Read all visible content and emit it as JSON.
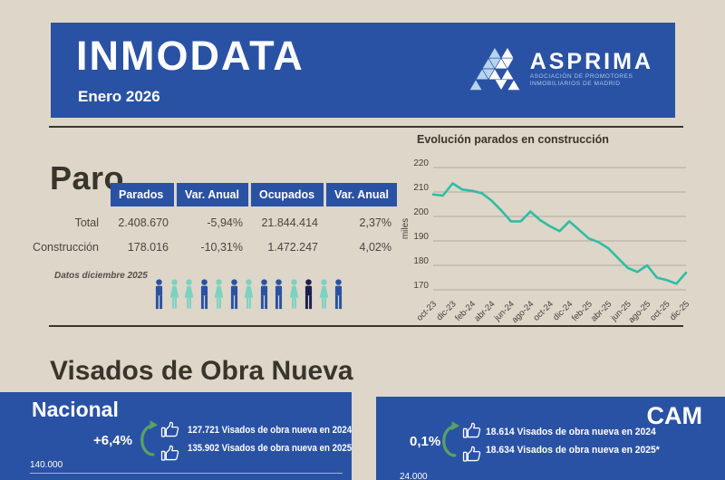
{
  "header": {
    "title": "INMODATA",
    "subtitle": "Enero 2026",
    "logo": {
      "name": "ASPRIMA",
      "tagline_line1": "ASOCIACIÓN DE PROMOTORES",
      "tagline_line2": "INMOBILIARIOS DE MADRID"
    }
  },
  "paro": {
    "title": "Paro",
    "table": {
      "columns": [
        "Parados",
        "Var. Anual",
        "Ocupados",
        "Var. Anual"
      ],
      "rows": [
        {
          "label": "Total",
          "values": [
            "2.408.670",
            "-5,94%",
            "21.844.414",
            "2,37%"
          ]
        },
        {
          "label": "Construcción",
          "values": [
            "178.016",
            "-10,31%",
            "1.472.247",
            "4,02%"
          ]
        }
      ]
    },
    "note": "Datos diciembre 2025",
    "pictogram": {
      "figures": [
        {
          "type": "man",
          "color": "#2a52a4"
        },
        {
          "type": "woman",
          "color": "#7bd2c0"
        },
        {
          "type": "woman",
          "color": "#7bd2c0"
        },
        {
          "type": "man",
          "color": "#2a52a4"
        },
        {
          "type": "woman",
          "color": "#7bd2c0"
        },
        {
          "type": "man",
          "color": "#2a52a4"
        },
        {
          "type": "woman",
          "color": "#7bd2c0"
        },
        {
          "type": "man",
          "color": "#2a52a4"
        },
        {
          "type": "man",
          "color": "#2a52a4"
        },
        {
          "type": "woman",
          "color": "#7bd2c0"
        },
        {
          "type": "man",
          "color": "#1c1e4e"
        },
        {
          "type": "woman",
          "color": "#7bd2c0"
        },
        {
          "type": "man",
          "color": "#2a52a4"
        }
      ]
    }
  },
  "chart_data": {
    "type": "line",
    "title": "Evolución parados en construcción",
    "ylabel": "miles",
    "ylim": [
      170,
      220
    ],
    "yticks": [
      220,
      210,
      200,
      190,
      180,
      170
    ],
    "grid": true,
    "line_color": "#2fbda4",
    "x": [
      "oct-23",
      "nov-23",
      "dic-23",
      "ene-24",
      "feb-24",
      "mar-24",
      "abr-24",
      "may-24",
      "jun-24",
      "jul-24",
      "ago-24",
      "sep-24",
      "oct-24",
      "nov-24",
      "dic-24",
      "ene-25",
      "feb-25",
      "mar-25",
      "abr-25",
      "may-25",
      "jun-25",
      "jul-25",
      "ago-25",
      "sep-25",
      "oct-25",
      "nov-25",
      "dic-25"
    ],
    "xticklabels": [
      "oct-23",
      "dic-23",
      "feb-24",
      "abr-24",
      "jun-24",
      "ago-24",
      "oct-24",
      "dic-24",
      "feb-25",
      "abr-25",
      "jun-25",
      "ago-25",
      "oct-25",
      "dic-25"
    ],
    "values": [
      209,
      208.5,
      213.5,
      211,
      210.5,
      209.5,
      206.5,
      202.5,
      198,
      198,
      202,
      198.5,
      196,
      194,
      198,
      194.5,
      191,
      189.5,
      187,
      183,
      179,
      177.3,
      180,
      175,
      174,
      172.5,
      177
    ]
  },
  "visados": {
    "title": "Visados de Obra Nueva",
    "cards": [
      {
        "region": "Nacional",
        "pct": "+6,4%",
        "line1": "127.721 Visados de obra nueva en 2024",
        "line2": "135.902 Visados de obra nueva en 2025*",
        "axis_label": "140.000"
      },
      {
        "region": "CAM",
        "pct": "0,1%",
        "line1": "18.614 Visados de obra nueva en 2024",
        "line2": "18.634 Visados de obra nueva en 2025*",
        "axis_label": "24.000"
      }
    ]
  },
  "icons": {
    "thumbs_up": "thumbs-up-icon",
    "growth_arrow": "circular-arrow-icon",
    "logo_mark": "asprima-triangle-logo"
  },
  "colors": {
    "background": "#ded6c8",
    "brand_blue": "#2a52a4",
    "teal": "#7bd2c0",
    "navy": "#1c1e4e",
    "chart_line": "#2fbda4",
    "arrow_green": "#57a266",
    "ink": "#38352b"
  }
}
